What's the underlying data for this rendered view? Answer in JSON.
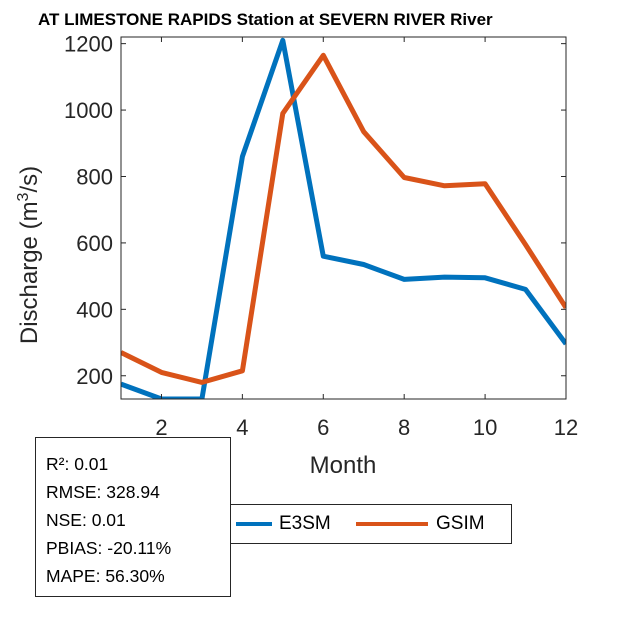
{
  "colors": {
    "e3sm": "#0072BD",
    "gsim": "#D95319",
    "axis": "#262626"
  },
  "chart_data": {
    "type": "line",
    "title": "AT LIMESTONE RAPIDS  Station at  SEVERN RIVER  River",
    "xlabel": "Month",
    "ylabel": "Discharge (m³/s)",
    "xlim": [
      1,
      12
    ],
    "ylim": [
      130,
      1220
    ],
    "xticks": [
      2,
      4,
      6,
      8,
      10,
      12
    ],
    "yticks": [
      200,
      400,
      600,
      800,
      1000,
      1200
    ],
    "x": [
      1,
      2,
      3,
      4,
      5,
      6,
      7,
      8,
      9,
      10,
      11,
      12
    ],
    "series": [
      {
        "name": "E3SM",
        "values": [
          175,
          130,
          130,
          860,
          1210,
          560,
          535,
          490,
          497,
          495,
          460,
          296
        ]
      },
      {
        "name": "GSIM",
        "values": [
          270,
          210,
          180,
          215,
          990,
          1165,
          935,
          797,
          772,
          778,
          595,
          405
        ]
      }
    ],
    "legend_position": "bottom"
  },
  "stats": {
    "r2": "R²: 0.01",
    "rmse": "RMSE: 328.94",
    "nse": "NSE: 0.01",
    "pbias": "PBIAS: -20.11%",
    "mape": "MAPE: 56.30%"
  },
  "legend": {
    "e3sm": "E3SM",
    "gsim": "GSIM"
  }
}
